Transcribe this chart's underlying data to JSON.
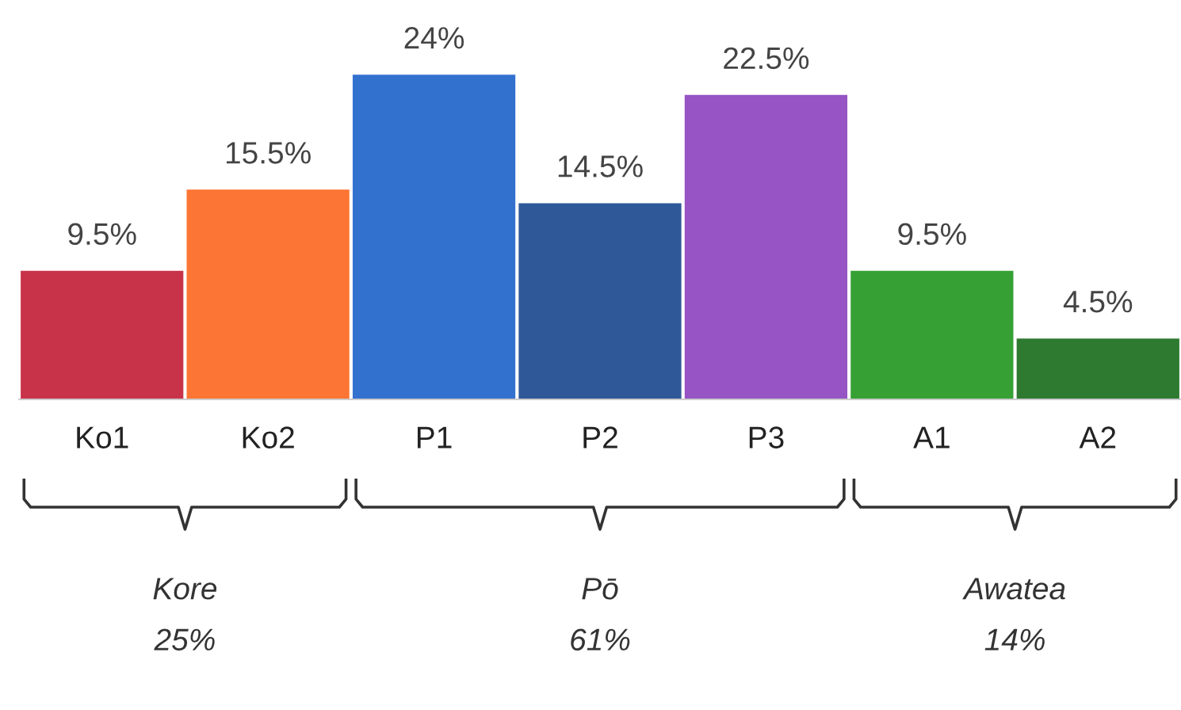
{
  "chart_data": {
    "type": "bar",
    "categories": [
      "Ko1",
      "Ko2",
      "P1",
      "P2",
      "P3",
      "A1",
      "A2"
    ],
    "values": [
      9.5,
      15.5,
      24,
      14.5,
      22.5,
      9.5,
      4.5
    ],
    "value_labels": [
      "9.5%",
      "15.5%",
      "24%",
      "14.5%",
      "22.5%",
      "9.5%",
      "4.5%"
    ],
    "colors": [
      "#c8334a",
      "#fd7534",
      "#3371cf",
      "#2f5899",
      "#9654c4",
      "#36a034",
      "#2e7a30"
    ],
    "annotations": [
      "Kore\n25%",
      "Pō\n61%",
      "Awatea\n14%"
    ],
    "grid": false,
    "legend": false
  }
}
